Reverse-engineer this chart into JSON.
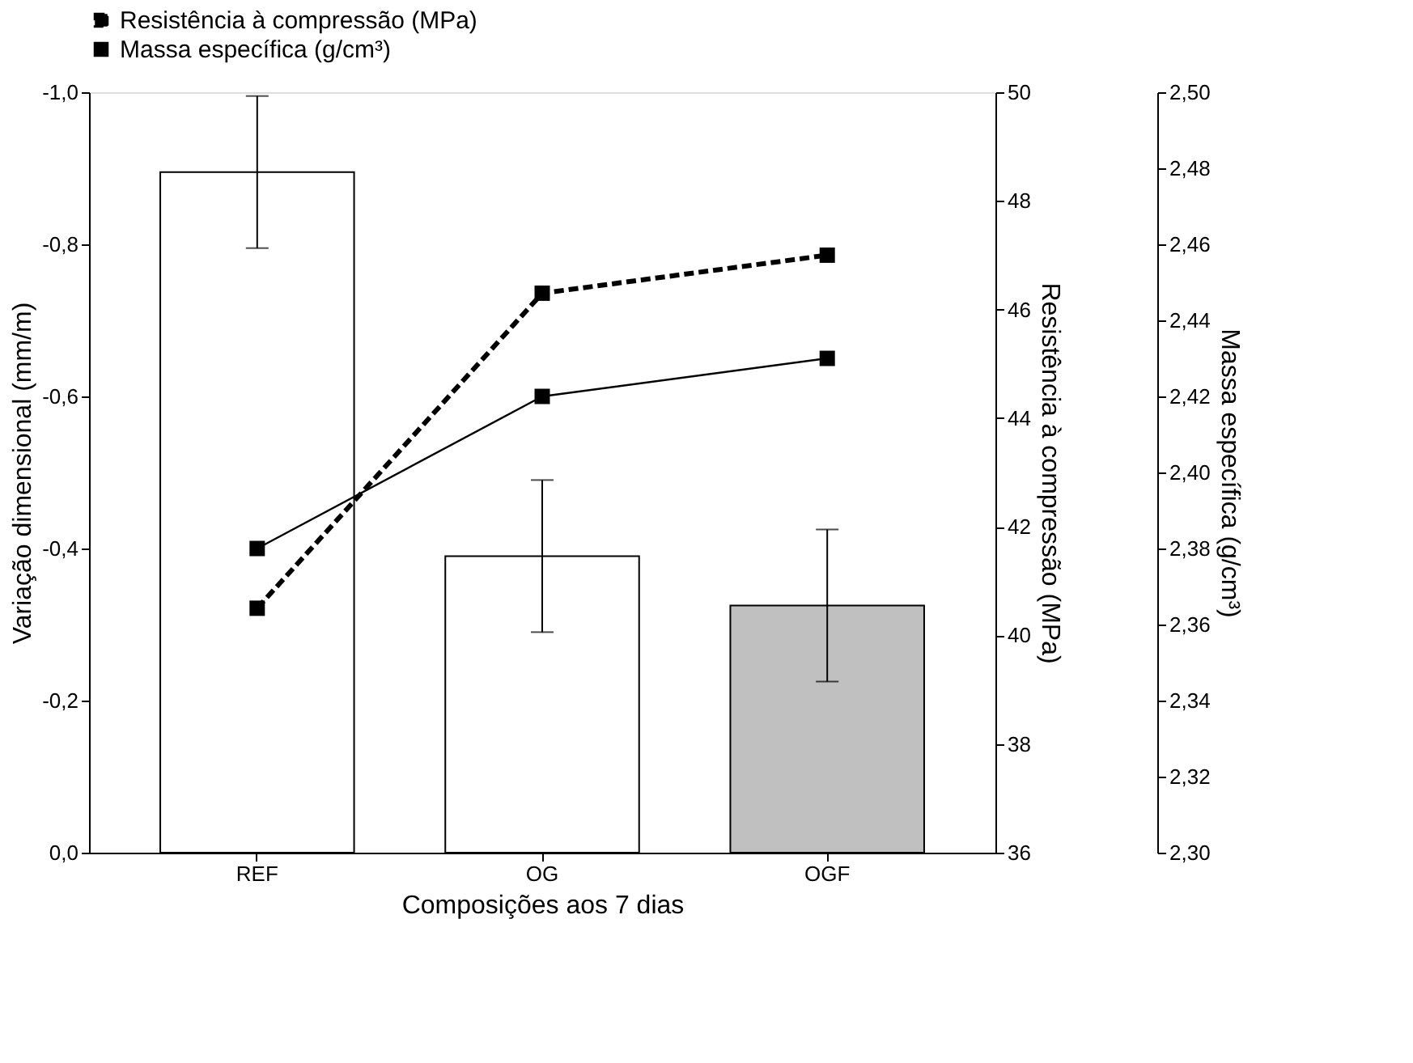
{
  "chart_data": {
    "type": "bar",
    "categories": [
      "REF",
      "OG",
      "OGF"
    ],
    "xlabel": "Composições aos 7 dias",
    "ylabel": "Variação dimensional (mm/m)",
    "y2label": "Resistência à compressão (MPa)",
    "y3label": "Massa específica (g/cm³)",
    "values": [
      -0.895,
      -0.39,
      -0.325
    ],
    "errors": [
      0.1,
      0.1,
      0.1
    ],
    "colors": [
      "#ffffff",
      "#ffffff",
      "#c0c0c0"
    ],
    "ylim": [
      0,
      -1.0
    ],
    "yticks": [
      {
        "value": 0,
        "label": "0,0"
      },
      {
        "value": -0.2,
        "label": "-0,2"
      },
      {
        "value": -0.4,
        "label": "-0,4"
      },
      {
        "value": -0.6,
        "label": "-0,6"
      },
      {
        "value": -0.8,
        "label": "-0,8"
      },
      {
        "value": -1.0,
        "label": "-1,0"
      }
    ],
    "y2lim": [
      36,
      50
    ],
    "y2ticks": [
      36,
      38,
      40,
      42,
      44,
      46,
      48,
      50
    ],
    "y3lim": [
      2.3,
      2.5
    ],
    "y3ticks": [
      {
        "value": 2.3,
        "label": "2,30"
      },
      {
        "value": 2.32,
        "label": "2,32"
      },
      {
        "value": 2.34,
        "label": "2,34"
      },
      {
        "value": 2.36,
        "label": "2,36"
      },
      {
        "value": 2.38,
        "label": "2,38"
      },
      {
        "value": 2.4,
        "label": "2,40"
      },
      {
        "value": 2.42,
        "label": "2,42"
      },
      {
        "value": 2.44,
        "label": "2,44"
      },
      {
        "value": 2.46,
        "label": "2,46"
      },
      {
        "value": 2.48,
        "label": "2,48"
      },
      {
        "value": 2.5,
        "label": "2,50"
      }
    ],
    "series": [
      {
        "name": "Resistência à compressão (MPa)",
        "type": "line",
        "axis": "y2",
        "color": "#000000",
        "line_style": "dashed",
        "marker": "square",
        "values": [
          40.5,
          46.3,
          47.0
        ]
      },
      {
        "name": "Massa específica (g/cm³)",
        "type": "line",
        "axis": "y3",
        "color": "#000000",
        "line_style": "solid",
        "marker": "square",
        "values": [
          2.38,
          2.42,
          2.43
        ]
      }
    ],
    "legend": "top",
    "grid": false
  }
}
